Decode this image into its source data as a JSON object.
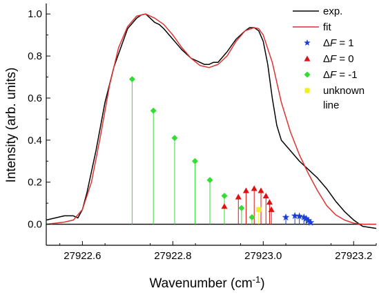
{
  "chart_data": {
    "type": "line",
    "title": "",
    "xlabel": "Wavenumber (cm",
    "xlabel_sup": "-1",
    "xlabel_close": ")",
    "ylabel": "Intensity (arb. units)",
    "xlim": [
      27922.52,
      27923.25
    ],
    "ylim": [
      -0.1,
      1.05
    ],
    "xticks": [
      27922.6,
      27922.8,
      27923.0,
      27923.2
    ],
    "xtick_labels": [
      "27922.6",
      "27922.8",
      "27923.0",
      "27923.2"
    ],
    "yticks": [
      0.0,
      0.2,
      0.4,
      0.6,
      0.8,
      1.0
    ],
    "ytick_labels": [
      "0.0",
      "0.2",
      "0.4",
      "0.6",
      "0.8",
      "1.0"
    ],
    "grid": false,
    "legend_position": "top-right",
    "baseline": 0.0,
    "series": [
      {
        "name": "exp.",
        "kind": "line",
        "color": "#000000",
        "x": [
          27922.52,
          27922.56,
          27922.58,
          27922.59,
          27922.6,
          27922.61,
          27922.63,
          27922.65,
          27922.67,
          27922.69,
          27922.7,
          27922.72,
          27922.73,
          27922.74,
          27922.75,
          27922.76,
          27922.77,
          27922.78,
          27922.8,
          27922.82,
          27922.84,
          27922.86,
          27922.87,
          27922.88,
          27922.89,
          27922.9,
          27922.92,
          27922.94,
          27922.96,
          27922.97,
          27922.98,
          27922.99,
          27923.0,
          27923.01,
          27923.02,
          27923.03,
          27923.04,
          27923.06,
          27923.08,
          27923.1,
          27923.12,
          27923.14,
          27923.16,
          27923.18,
          27923.2,
          27923.22,
          27923.25
        ],
        "y": [
          0.02,
          0.04,
          0.04,
          0.03,
          0.07,
          0.15,
          0.35,
          0.58,
          0.75,
          0.87,
          0.93,
          0.98,
          0.995,
          1.0,
          0.98,
          0.96,
          0.95,
          0.93,
          0.88,
          0.83,
          0.79,
          0.77,
          0.76,
          0.76,
          0.77,
          0.77,
          0.82,
          0.88,
          0.92,
          0.935,
          0.935,
          0.92,
          0.87,
          0.76,
          0.6,
          0.47,
          0.4,
          0.35,
          0.3,
          0.26,
          0.22,
          0.17,
          0.11,
          0.06,
          0.02,
          -0.01,
          -0.02
        ]
      },
      {
        "name": "fit",
        "kind": "line",
        "color": "#e03030",
        "x": [
          27922.52,
          27922.56,
          27922.58,
          27922.6,
          27922.62,
          27922.64,
          27922.66,
          27922.68,
          27922.7,
          27922.72,
          27922.74,
          27922.76,
          27922.78,
          27922.8,
          27922.82,
          27922.84,
          27922.86,
          27922.88,
          27922.9,
          27922.92,
          27922.94,
          27922.96,
          27922.98,
          27922.99,
          27923.0,
          27923.02,
          27923.04,
          27923.06,
          27923.08,
          27923.1,
          27923.12,
          27923.14,
          27923.16,
          27923.18,
          27923.2,
          27923.22,
          27923.25
        ],
        "y": [
          0.0,
          0.01,
          0.02,
          0.07,
          0.2,
          0.42,
          0.66,
          0.84,
          0.94,
          0.99,
          1.0,
          0.98,
          0.95,
          0.9,
          0.84,
          0.79,
          0.755,
          0.745,
          0.76,
          0.8,
          0.87,
          0.92,
          0.935,
          0.93,
          0.9,
          0.77,
          0.58,
          0.44,
          0.33,
          0.24,
          0.16,
          0.09,
          0.045,
          0.02,
          0.005,
          0.0,
          0.0
        ]
      },
      {
        "name": "ΔF = 1",
        "kind": "stick",
        "marker": "star",
        "color": "#1a3fd6",
        "x": [
          27923.05,
          27923.07,
          27923.08,
          27923.09,
          27923.095,
          27923.1,
          27923.105
        ],
        "y": [
          0.033,
          0.04,
          0.038,
          0.033,
          0.027,
          0.018,
          0.008
        ]
      },
      {
        "name": "ΔF = 0",
        "kind": "stick",
        "marker": "triangle",
        "color": "#e01010",
        "x": [
          27922.914,
          27922.945,
          27922.962,
          27922.98,
          27922.995,
          27923.006,
          27923.014,
          27923.018
        ],
        "y": [
          0.085,
          0.13,
          0.16,
          0.17,
          0.16,
          0.135,
          0.105,
          0.07
        ]
      },
      {
        "name": "ΔF = -1",
        "kind": "stick",
        "marker": "diamond",
        "color": "#33dd33",
        "x": [
          27922.71,
          27922.757,
          27922.804,
          27922.849,
          27922.882,
          27922.914,
          27922.952,
          27922.975
        ],
        "y": [
          0.69,
          0.54,
          0.41,
          0.3,
          0.21,
          0.135,
          0.077,
          0.033
        ]
      },
      {
        "name": "unknown line",
        "legend_lines": [
          "unknown",
          "line"
        ],
        "kind": "stick",
        "marker": "square",
        "color": "#eeee22",
        "x": [
          27922.99
        ],
        "y": [
          0.07
        ]
      }
    ]
  }
}
